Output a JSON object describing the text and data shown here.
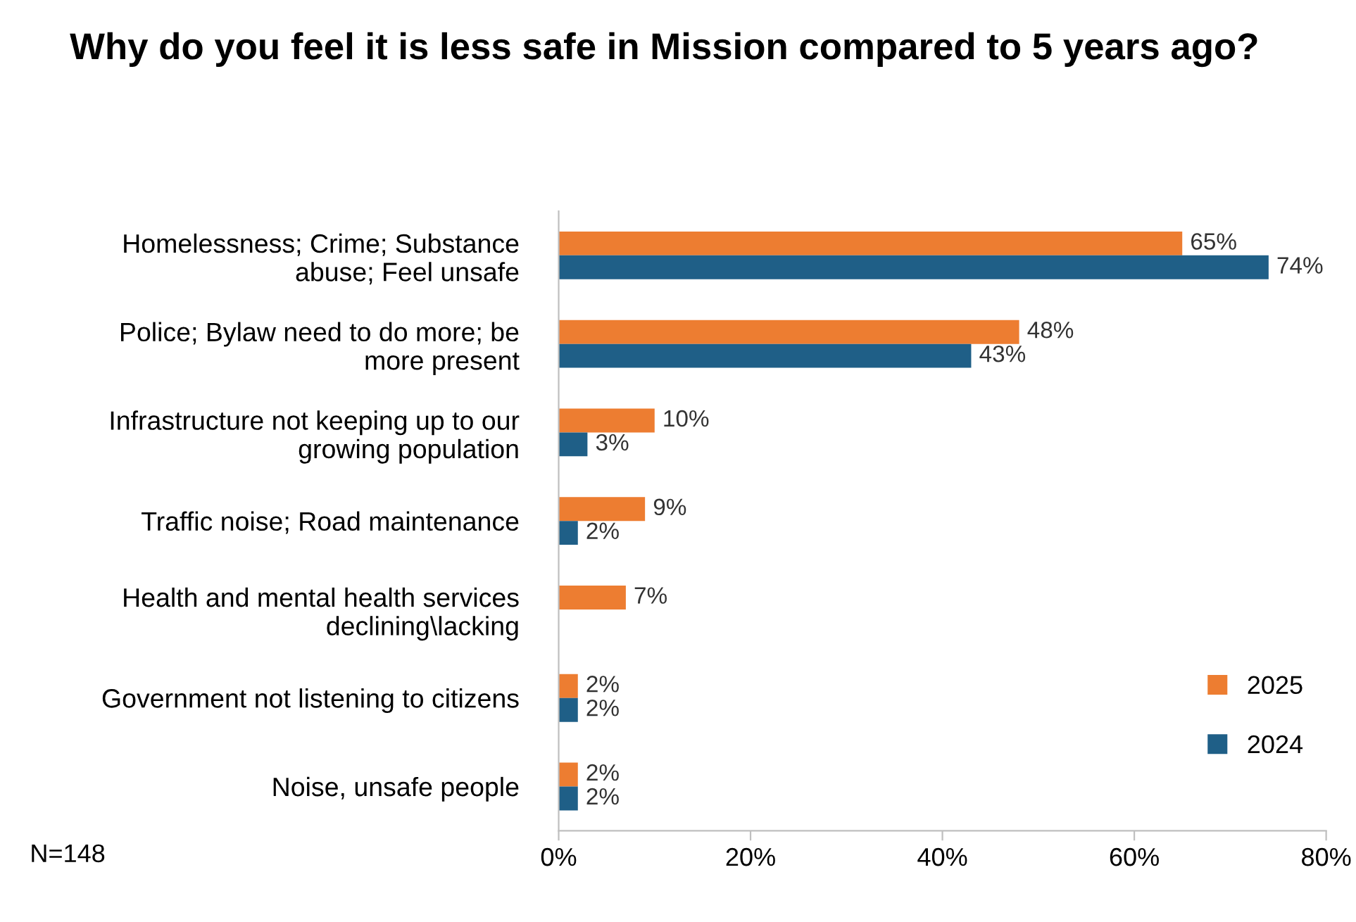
{
  "chart_data": {
    "type": "bar",
    "orientation": "horizontal",
    "title": "Why do you feel it is less safe in Mission compared to 5 years ago?",
    "categories": [
      "Homelessness; Crime; Substance\nabuse; Feel unsafe",
      "Police; Bylaw need to do more; be\nmore present",
      "Infrastructure not keeping up to our\ngrowing population",
      "Traffic noise; Road maintenance",
      "Health and mental health services\ndeclining\\lacking",
      "Government not listening to citizens",
      "Noise, unsafe people"
    ],
    "series": [
      {
        "name": "2025",
        "color": "#ed7d31",
        "values": [
          65,
          48,
          10,
          9,
          7,
          2,
          2
        ],
        "value_labels": [
          "65%",
          "48%",
          "10%",
          "9%",
          "7%",
          "2%",
          "2%"
        ]
      },
      {
        "name": "2024",
        "color": "#1f5f87",
        "values": [
          74,
          43,
          3,
          2,
          null,
          2,
          2
        ],
        "value_labels": [
          "74%",
          "43%",
          "3%",
          "2%",
          null,
          "2%",
          "2%"
        ]
      }
    ],
    "xlim": [
      0,
      80
    ],
    "xticks": [
      {
        "value": 0,
        "label": "0%"
      },
      {
        "value": 20,
        "label": "20%"
      },
      {
        "value": 40,
        "label": "40%"
      },
      {
        "value": 60,
        "label": "60%"
      },
      {
        "value": 80,
        "label": "80%"
      }
    ],
    "grid": false,
    "legend": "bottom right",
    "annotations": [
      "N=148"
    ]
  }
}
